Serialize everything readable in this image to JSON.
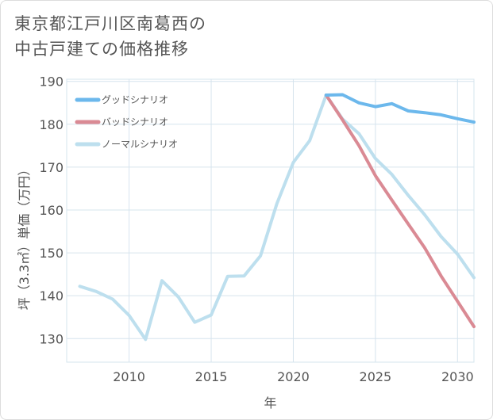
{
  "title_line1": "東京都江戸川区南葛西の",
  "title_line2": "中古戸建ての価格推移",
  "chart_data": {
    "type": "line",
    "xlabel": "年",
    "ylabel": "坪（3.3㎡）単価（万円）",
    "xlim": [
      2006.2,
      2031
    ],
    "ylim": [
      124.5,
      190.5
    ],
    "x_ticks": [
      2010,
      2015,
      2020,
      2025,
      2030
    ],
    "y_ticks": [
      130,
      140,
      150,
      160,
      170,
      180,
      190
    ],
    "legend": [
      "グッドシナリオ",
      "バッドシナリオ",
      "ノーマルシナリオ"
    ],
    "series": [
      {
        "name": "グッドシナリオ",
        "color": "#6cb8ec",
        "x": [
          2022,
          2023,
          2024,
          2025,
          2026,
          2027,
          2028,
          2029,
          2030,
          2031
        ],
        "values": [
          186.8,
          186.9,
          185.0,
          184.1,
          184.8,
          183.1,
          182.7,
          182.2,
          181.3,
          180.5
        ]
      },
      {
        "name": "バッドシナリオ",
        "color": "#da8a94",
        "x": [
          2022,
          2023,
          2024,
          2025,
          2026,
          2027,
          2028,
          2029,
          2030,
          2031
        ],
        "values": [
          186.8,
          181.0,
          175.0,
          168.0,
          162.3,
          156.7,
          151.2,
          144.6,
          138.7,
          132.8
        ]
      },
      {
        "name": "ノーマルシナリオ",
        "color": "#bddfee",
        "x": [
          2007,
          2008,
          2009,
          2010,
          2011,
          2012,
          2013,
          2014,
          2015,
          2016,
          2017,
          2018,
          2019,
          2020,
          2021,
          2022,
          2023,
          2024,
          2025,
          2026,
          2027,
          2028,
          2029,
          2030,
          2031
        ],
        "values": [
          142.2,
          141.0,
          139.2,
          135.4,
          129.8,
          143.5,
          139.7,
          133.8,
          135.5,
          144.5,
          144.6,
          149.3,
          161.5,
          171.1,
          176.2,
          186.8,
          181.2,
          177.8,
          172.0,
          168.3,
          163.4,
          158.9,
          153.8,
          149.7,
          144.2
        ]
      }
    ]
  }
}
